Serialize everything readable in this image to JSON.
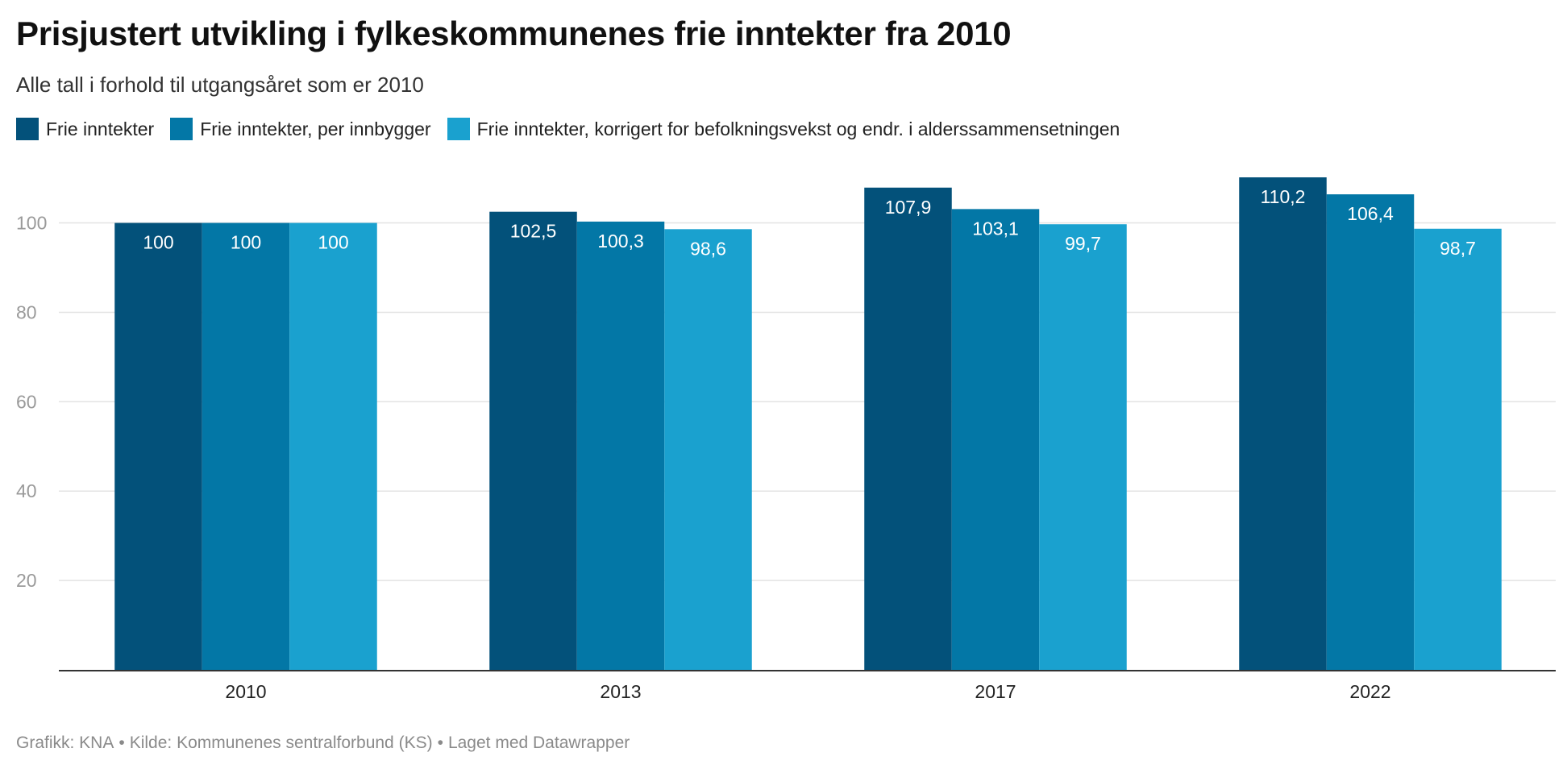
{
  "title": "Prisjustert utvikling i fylkeskommunenes frie inntekter fra 2010",
  "subtitle": "Alle tall i forhold til utgangsåret som er 2010",
  "footer": {
    "graphic": "Grafikk: KNA",
    "source": "Kilde: Kommunenes sentralforbund (KS)",
    "made_with": "Laget med Datawrapper"
  },
  "chart_data": {
    "type": "bar",
    "title": "Prisjustert utvikling i fylkeskommunenes frie inntekter fra 2010",
    "categories": [
      "2010",
      "2013",
      "2017",
      "2022"
    ],
    "series": [
      {
        "name": "Frie inntekter",
        "color": "#03517a",
        "values": [
          100,
          102.5,
          107.9,
          110.2
        ],
        "labels": [
          "100",
          "102,5",
          "107,9",
          "110,2"
        ]
      },
      {
        "name": "Frie inntekter, per innbygger",
        "color": "#0377a6",
        "values": [
          100,
          100.3,
          103.1,
          106.4
        ],
        "labels": [
          "100",
          "100,3",
          "103,1",
          "106,4"
        ]
      },
      {
        "name": "Frie inntekter, korrigert for befolkningsvekst og endr. i alderssammensetningen",
        "color": "#1aa1cf",
        "values": [
          100,
          98.6,
          99.7,
          98.7
        ],
        "labels": [
          "100",
          "98,6",
          "99,7",
          "98,7"
        ]
      }
    ],
    "ylim": [
      0,
      110.2
    ],
    "yticks": [
      20,
      40,
      60,
      80,
      100
    ],
    "ytick_labels": [
      "20",
      "40",
      "60",
      "80",
      "100"
    ],
    "xlabel": "",
    "ylabel": "",
    "grid": true,
    "legend": "top-left"
  }
}
